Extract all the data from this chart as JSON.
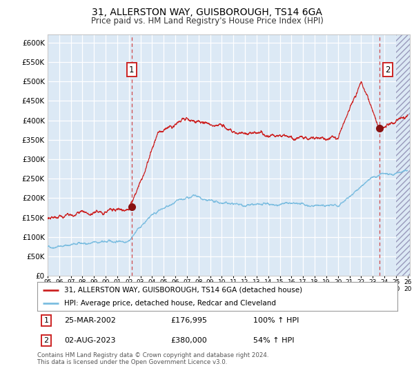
{
  "title_line1": "31, ALLERSTON WAY, GUISBOROUGH, TS14 6GA",
  "title_line2": "Price paid vs. HM Land Registry's House Price Index (HPI)",
  "ylim": [
    0,
    620000
  ],
  "yticks": [
    0,
    50000,
    100000,
    150000,
    200000,
    250000,
    300000,
    350000,
    400000,
    450000,
    500000,
    550000,
    600000
  ],
  "hpi_color": "#7bbde0",
  "price_color": "#cc2222",
  "marker_color": "#881111",
  "vline_color": "#cc2222",
  "sale1_date_num": 2002.23,
  "sale1_price": 176995,
  "sale2_date_num": 2023.58,
  "sale2_price": 380000,
  "x_start": 1995.0,
  "x_end": 2026.2,
  "xtick_start": 1995,
  "xtick_end": 2026,
  "plot_bg_color": "#dce9f5",
  "grid_color": "#ffffff",
  "legend_label1": "31, ALLERSTON WAY, GUISBOROUGH, TS14 6GA (detached house)",
  "legend_label2": "HPI: Average price, detached house, Redcar and Cleveland",
  "annotation1_label": "1",
  "annotation2_label": "2",
  "ann1_date": "25-MAR-2002",
  "ann1_price": "£176,995",
  "ann1_hpi": "100% ↑ HPI",
  "ann2_date": "02-AUG-2023",
  "ann2_price": "£380,000",
  "ann2_hpi": "54% ↑ HPI",
  "footer": "Contains HM Land Registry data © Crown copyright and database right 2024.\nThis data is licensed under the Open Government Licence v3.0.",
  "hatch_start": 2025.0,
  "fig_width": 6.0,
  "fig_height": 5.6,
  "dpi": 100
}
